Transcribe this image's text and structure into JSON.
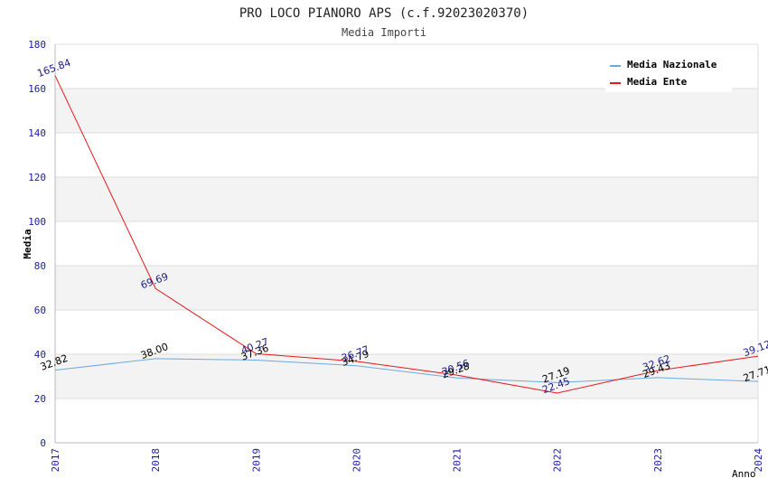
{
  "chart_data": {
    "type": "line",
    "title": "PRO LOCO PIANORO APS (c.f.92023020370)",
    "subtitle": "Media Importi",
    "xlabel": "Anno",
    "ylabel": "Media",
    "categories": [
      "2017",
      "2018",
      "2019",
      "2020",
      "2021",
      "2022",
      "2023",
      "2024"
    ],
    "ylim": [
      0,
      180
    ],
    "yticks": [
      "0",
      "20",
      "40",
      "60",
      "80",
      "100",
      "120",
      "140",
      "160",
      "180"
    ],
    "legend_position": "top-right",
    "grid": true,
    "series": [
      {
        "name": "Media Nazionale",
        "color": "#6fa8e0",
        "label_color": "#000000",
        "values": [
          32.82,
          38.0,
          37.36,
          34.79,
          29.28,
          27.19,
          29.43,
          27.71
        ],
        "labels": [
          "32.82",
          "38.00",
          "37.36",
          "34.79",
          "29.28",
          "27.19",
          "29.43",
          "27.71"
        ]
      },
      {
        "name": "Media Ente",
        "color": "#e8191a",
        "label_color": "#1a1a8c",
        "values": [
          165.84,
          69.69,
          40.27,
          36.77,
          30.56,
          22.45,
          32.62,
          39.12
        ],
        "labels": [
          "165.84",
          "69.69",
          "40.27",
          "36.77",
          "30.56",
          "22.45",
          "32.62",
          "39.12"
        ]
      }
    ]
  }
}
